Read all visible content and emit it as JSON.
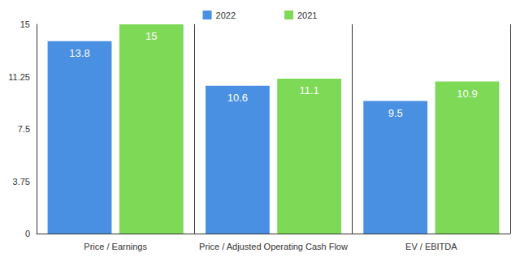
{
  "chart_data": {
    "type": "bar",
    "categories": [
      "Price / Earnings",
      "Price / Adjusted Operating Cash Flow",
      "EV / EBITDA"
    ],
    "series": [
      {
        "name": "2022",
        "color": "#4a90e2",
        "values": [
          13.8,
          10.6,
          9.5
        ]
      },
      {
        "name": "2021",
        "color": "#7ed957",
        "values": [
          15,
          11.1,
          10.9
        ]
      }
    ],
    "ylim": [
      0,
      15
    ],
    "yticks": [
      0,
      3.75,
      7.5,
      11.25,
      15
    ],
    "grid": false,
    "legend": "top",
    "data_labels": true
  }
}
